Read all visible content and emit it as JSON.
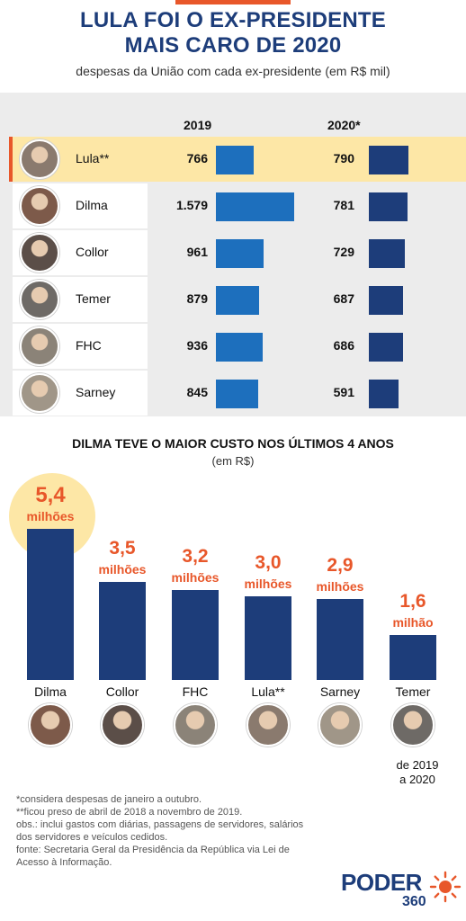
{
  "header": {
    "title_line1": "LULA FOI O EX-PRESIDENTE",
    "title_line2": "MAIS CARO DE 2020",
    "subtitle": "despesas da União com cada ex-presidente (em R$ mil)"
  },
  "table": {
    "col_2019": "2019",
    "col_2020": "2020*"
  },
  "chart_data": [
    {
      "type": "bar",
      "title": "LULA FOI O EX-PRESIDENTE MAIS CARO DE 2020",
      "subtitle": "despesas da União com cada ex-presidente (em R$ mil)",
      "categories": [
        "Lula**",
        "Dilma",
        "Collor",
        "Temer",
        "FHC",
        "Sarney"
      ],
      "series": [
        {
          "name": "2019",
          "values": [
            766,
            1579,
            961,
            879,
            936,
            845
          ],
          "labels": [
            "766",
            "1.579",
            "961",
            "879",
            "936",
            "845"
          ],
          "color": "#1d6fbd"
        },
        {
          "name": "2020*",
          "values": [
            790,
            781,
            729,
            687,
            686,
            591
          ],
          "labels": [
            "790",
            "781",
            "729",
            "687",
            "686",
            "591"
          ],
          "color": "#1d3d7a"
        }
      ],
      "highlight": "Lula**",
      "avatar_colors": [
        "#8a7a6e",
        "#7d5a4a",
        "#5b4e48",
        "#6e6a66",
        "#8b8378",
        "#a09688"
      ]
    },
    {
      "type": "bar",
      "title": "DILMA TEVE O MAIOR CUSTO NOS ÚLTIMOS 4 ANOS",
      "subtitle": "(em R$)",
      "categories": [
        "Dilma",
        "Collor",
        "FHC",
        "Lula**",
        "Sarney",
        "Temer"
      ],
      "values": [
        5.4,
        3.5,
        3.2,
        3.0,
        2.9,
        1.6
      ],
      "value_labels": [
        "5,4",
        "3,5",
        "3,2",
        "3,0",
        "2,9",
        "1,6"
      ],
      "unit_labels": [
        "milhões",
        "milhões",
        "milhões",
        "milhões",
        "milhões",
        "milhão"
      ],
      "unit": "milhões de R$",
      "bar_color": "#1d3d7a",
      "label_color": "#e8572a",
      "avatar_colors": [
        "#7d5a4a",
        "#5b4e48",
        "#8b8378",
        "#8a7a6e",
        "#a09688",
        "#6e6a66"
      ],
      "note": {
        "category": "Temer",
        "line1": "de 2019",
        "line2": "a 2020"
      }
    }
  ],
  "section2": {
    "title": "DILMA TEVE O MAIOR CUSTO NOS ÚLTIMOS 4 ANOS",
    "subtitle": "(em R$)"
  },
  "footnotes": [
    "*considera despesas de janeiro a outubro.",
    "**ficou preso de abril de 2018 a novembro de 2019.",
    "obs.: inclui gastos com diárias, passagens de servidores, salários",
    "dos servidores e veículos cedidos.",
    "fonte: Secretaria Geral da Presidência da República via Lei de",
    "Acesso à Informação."
  ],
  "logo": {
    "word": "PODER",
    "number": "360",
    "sun_icon": "sun-icon"
  },
  "colors": {
    "accent": "#e8572a",
    "navy": "#1d3d7a",
    "blue": "#1d6fbd",
    "highlight": "#fde7a6"
  }
}
